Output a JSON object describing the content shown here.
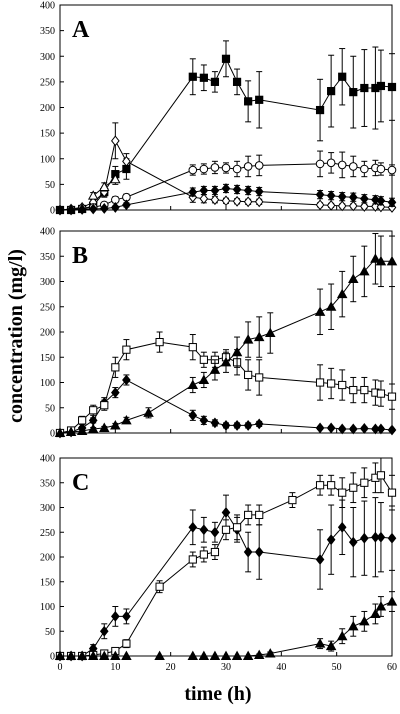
{
  "figure": {
    "xlabel": "time (h)",
    "ylabel": "concentration (mg/l)"
  },
  "chart_data": [
    {
      "type": "line",
      "panel_label": "A",
      "xlim": [
        0,
        60
      ],
      "ylim": [
        0,
        400
      ],
      "xticks": [],
      "yticks": [
        0,
        50,
        100,
        150,
        200,
        250,
        300,
        350,
        400
      ],
      "grid": false,
      "series": [
        {
          "marker": "filled-square",
          "x": [
            0,
            2,
            4,
            6,
            8,
            10,
            12,
            24,
            26,
            28,
            30,
            32,
            34,
            36,
            47,
            49,
            51,
            53,
            55,
            57,
            58,
            60
          ],
          "y": [
            0,
            0,
            2,
            8,
            35,
            70,
            80,
            260,
            258,
            250,
            295,
            250,
            212,
            215,
            195,
            232,
            260,
            230,
            238,
            238,
            242,
            240
          ],
          "err": [
            0,
            0,
            2,
            4,
            8,
            15,
            20,
            35,
            25,
            20,
            35,
            25,
            40,
            55,
            60,
            70,
            55,
            70,
            75,
            80,
            70,
            65
          ]
        },
        {
          "marker": "open-diamond",
          "x": [
            0,
            2,
            4,
            6,
            8,
            10,
            12,
            24,
            26,
            28,
            30,
            32,
            34,
            36,
            47,
            49,
            51,
            53,
            55,
            57,
            58,
            60
          ],
          "y": [
            0,
            2,
            5,
            15,
            35,
            135,
            95,
            25,
            22,
            20,
            18,
            17,
            16,
            16,
            10,
            9,
            8,
            8,
            7,
            7,
            6,
            5
          ],
          "err": [
            0,
            1,
            3,
            5,
            10,
            35,
            15,
            10,
            8,
            6,
            5,
            5,
            5,
            5,
            4,
            4,
            4,
            4,
            4,
            3,
            3,
            3
          ]
        },
        {
          "marker": "open-triangle",
          "x": [
            6,
            8,
            10
          ],
          "y": [
            28,
            45,
            60
          ],
          "err": [
            6,
            8,
            10
          ]
        },
        {
          "marker": "open-circle",
          "x": [
            0,
            2,
            4,
            6,
            8,
            10,
            12,
            24,
            26,
            28,
            30,
            32,
            34,
            36,
            47,
            49,
            51,
            53,
            55,
            57,
            58,
            60
          ],
          "y": [
            0,
            1,
            3,
            5,
            10,
            20,
            25,
            78,
            80,
            83,
            82,
            80,
            85,
            87,
            90,
            92,
            88,
            85,
            80,
            82,
            80,
            78
          ],
          "err": [
            0,
            1,
            2,
            3,
            4,
            6,
            6,
            10,
            10,
            12,
            10,
            15,
            20,
            20,
            25,
            20,
            25,
            20,
            15,
            15,
            12,
            10
          ]
        },
        {
          "marker": "filled-diamond",
          "x": [
            0,
            2,
            4,
            6,
            8,
            10,
            12,
            24,
            26,
            28,
            30,
            32,
            34,
            36,
            47,
            49,
            51,
            53,
            55,
            57,
            58,
            60
          ],
          "y": [
            0,
            0,
            1,
            2,
            3,
            5,
            10,
            35,
            38,
            38,
            42,
            40,
            38,
            36,
            30,
            28,
            26,
            25,
            22,
            20,
            18,
            15
          ],
          "err": [
            0,
            0,
            1,
            1,
            2,
            3,
            4,
            8,
            8,
            8,
            8,
            8,
            8,
            8,
            8,
            8,
            8,
            8,
            8,
            8,
            8,
            8
          ]
        }
      ]
    },
    {
      "type": "line",
      "panel_label": "B",
      "xlim": [
        0,
        60
      ],
      "ylim": [
        0,
        400
      ],
      "xticks": [],
      "yticks": [
        0,
        50,
        100,
        150,
        200,
        250,
        300,
        350,
        400
      ],
      "grid": false,
      "series": [
        {
          "marker": "filled-diamond",
          "x": [
            0,
            2,
            4,
            6,
            8,
            10,
            12,
            24,
            26,
            28,
            30,
            32,
            34,
            36,
            47,
            49,
            51,
            53,
            55,
            57,
            58,
            60
          ],
          "y": [
            0,
            2,
            10,
            25,
            60,
            80,
            105,
            35,
            25,
            20,
            15,
            15,
            15,
            18,
            10,
            10,
            8,
            8,
            9,
            8,
            8,
            6
          ],
          "err": [
            0,
            1,
            3,
            5,
            10,
            10,
            10,
            10,
            8,
            6,
            5,
            5,
            5,
            5,
            3,
            3,
            3,
            3,
            3,
            3,
            3,
            3
          ]
        },
        {
          "marker": "open-square",
          "x": [
            0,
            2,
            4,
            6,
            8,
            10,
            12,
            18,
            24,
            26,
            28,
            30,
            32,
            34,
            36,
            47,
            49,
            51,
            53,
            55,
            57,
            58,
            60
          ],
          "y": [
            0,
            5,
            25,
            45,
            55,
            130,
            165,
            180,
            170,
            145,
            145,
            150,
            140,
            115,
            110,
            100,
            98,
            95,
            85,
            85,
            80,
            78,
            72
          ],
          "err": [
            0,
            2,
            8,
            10,
            10,
            20,
            20,
            20,
            25,
            15,
            15,
            15,
            25,
            30,
            35,
            35,
            30,
            30,
            25,
            25,
            25,
            25,
            25
          ]
        },
        {
          "marker": "filled-triangle",
          "x": [
            0,
            2,
            4,
            6,
            8,
            10,
            12,
            16,
            24,
            26,
            28,
            30,
            32,
            34,
            36,
            38,
            47,
            49,
            51,
            53,
            55,
            57,
            58,
            60
          ],
          "y": [
            0,
            2,
            4,
            8,
            10,
            15,
            25,
            40,
            95,
            105,
            125,
            140,
            160,
            185,
            190,
            198,
            240,
            250,
            275,
            305,
            320,
            345,
            340,
            340
          ],
          "err": [
            0,
            1,
            2,
            3,
            3,
            4,
            6,
            10,
            15,
            15,
            20,
            20,
            30,
            35,
            40,
            40,
            45,
            45,
            45,
            45,
            50,
            50,
            50,
            50
          ]
        }
      ]
    },
    {
      "type": "line",
      "panel_label": "C",
      "xlim": [
        0,
        60
      ],
      "ylim": [
        0,
        400
      ],
      "xticks": [
        0,
        10,
        20,
        30,
        40,
        50,
        60
      ],
      "yticks": [
        0,
        50,
        100,
        150,
        200,
        250,
        300,
        350,
        400
      ],
      "grid": false,
      "series": [
        {
          "marker": "filled-diamond",
          "x": [
            0,
            2,
            4,
            6,
            8,
            10,
            12,
            24,
            26,
            28,
            30,
            32,
            34,
            36,
            47,
            49,
            51,
            53,
            55,
            57,
            58,
            60
          ],
          "y": [
            0,
            0,
            0,
            15,
            50,
            80,
            80,
            260,
            255,
            250,
            290,
            255,
            210,
            210,
            195,
            235,
            260,
            230,
            238,
            240,
            240,
            238
          ],
          "err": [
            0,
            0,
            0,
            8,
            15,
            20,
            15,
            35,
            25,
            20,
            35,
            25,
            40,
            55,
            60,
            70,
            55,
            70,
            75,
            80,
            70,
            65
          ]
        },
        {
          "marker": "open-square",
          "x": [
            0,
            2,
            4,
            6,
            8,
            10,
            12,
            18,
            24,
            26,
            28,
            30,
            32,
            34,
            36,
            42,
            47,
            49,
            51,
            53,
            55,
            57,
            58,
            60
          ],
          "y": [
            0,
            0,
            0,
            2,
            5,
            10,
            25,
            140,
            195,
            205,
            210,
            255,
            260,
            285,
            285,
            315,
            345,
            345,
            330,
            340,
            350,
            360,
            365,
            330
          ],
          "err": [
            0,
            0,
            0,
            1,
            3,
            5,
            8,
            12,
            15,
            15,
            15,
            20,
            25,
            20,
            20,
            15,
            20,
            20,
            30,
            30,
            30,
            30,
            35,
            35
          ]
        },
        {
          "marker": "filled-triangle",
          "x": [
            0,
            2,
            4,
            6,
            8,
            10,
            12,
            18,
            24,
            26,
            28,
            30,
            32,
            34,
            36,
            38,
            47,
            49,
            51,
            53,
            55,
            57,
            58,
            60
          ],
          "y": [
            0,
            0,
            0,
            0,
            0,
            0,
            0,
            0,
            0,
            0,
            0,
            0,
            0,
            0,
            2,
            5,
            25,
            20,
            40,
            60,
            70,
            85,
            100,
            110
          ],
          "err": [
            0,
            0,
            0,
            0,
            0,
            0,
            0,
            0,
            0,
            0,
            0,
            0,
            0,
            0,
            2,
            3,
            10,
            10,
            15,
            20,
            20,
            20,
            20,
            20
          ]
        }
      ]
    }
  ]
}
